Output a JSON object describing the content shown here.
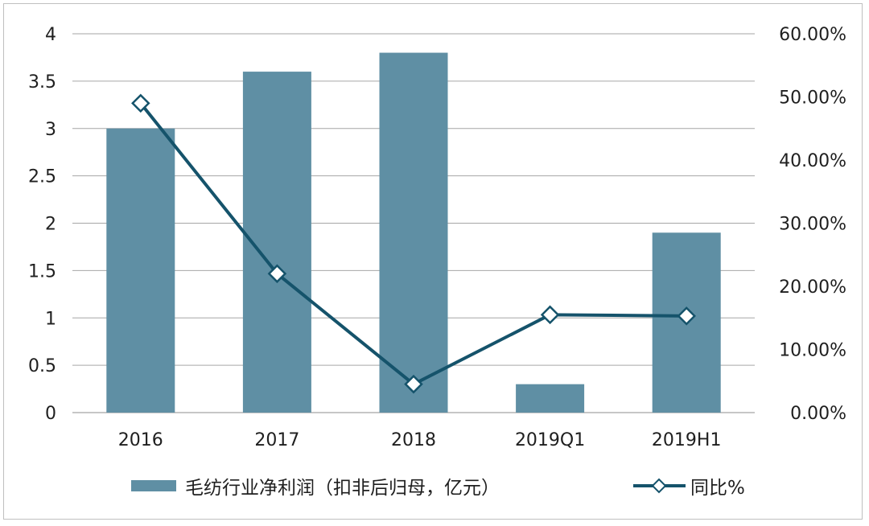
{
  "chart_data": {
    "type": "bar",
    "title": "",
    "xlabel": "",
    "ylabel": "",
    "categories": [
      "2016",
      "2017",
      "2018",
      "2019Q1",
      "2019H1"
    ],
    "series": [
      {
        "name": "毛纺行业净利润（扣非后归母，亿元）",
        "type": "bar",
        "axis": "left",
        "values": [
          3.0,
          3.6,
          3.8,
          0.3,
          1.9
        ],
        "color": "#5f8fa4"
      },
      {
        "name": "同比%",
        "type": "line",
        "axis": "right",
        "values": [
          0.49,
          0.22,
          0.045,
          0.155,
          0.153
        ],
        "color": "#15536b",
        "marker": "diamond"
      }
    ],
    "ylim": [
      0,
      4
    ],
    "yticks": [
      "0",
      "0.5",
      "1",
      "1.5",
      "2",
      "2.5",
      "3",
      "3.5",
      "4"
    ],
    "y2lim": [
      0,
      0.6
    ],
    "y2ticks": [
      "0.00%",
      "10.00%",
      "20.00%",
      "30.00%",
      "40.00%",
      "50.00%",
      "60.00%"
    ],
    "grid": true,
    "legend_position": "bottom"
  }
}
